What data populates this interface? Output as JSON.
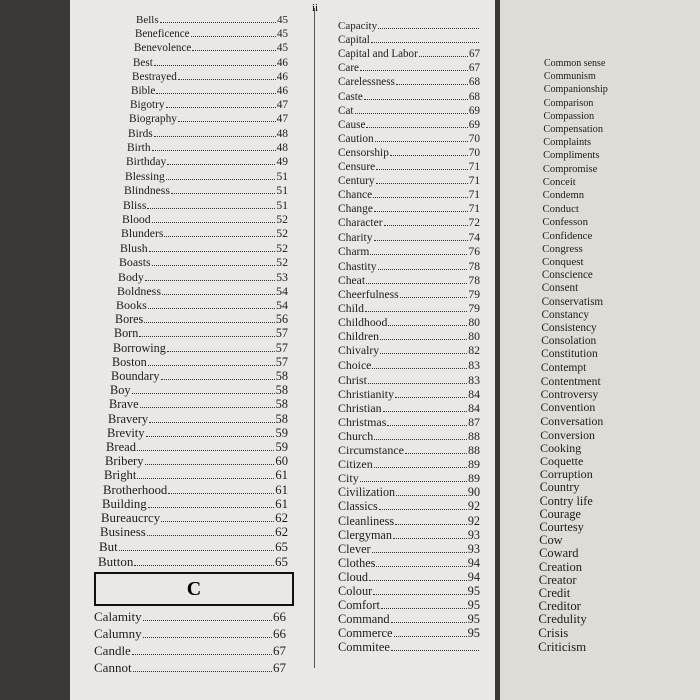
{
  "page_number": "ii",
  "left_column": {
    "entries": [
      {
        "term": "Bells",
        "page": 45
      },
      {
        "term": "Beneficence",
        "page": 45
      },
      {
        "term": "Benevolence",
        "page": 45
      },
      {
        "term": "Best",
        "page": 46
      },
      {
        "term": "Bestrayed",
        "page": 46
      },
      {
        "term": "Bible",
        "page": 46
      },
      {
        "term": "Bigotry",
        "page": 47
      },
      {
        "term": "Biography",
        "page": 47
      },
      {
        "term": "Birds",
        "page": 48
      },
      {
        "term": "Birth",
        "page": 48
      },
      {
        "term": "Birthday",
        "page": 49
      },
      {
        "term": "Blessing",
        "page": 51
      },
      {
        "term": "Blindness",
        "page": 51
      },
      {
        "term": "Bliss",
        "page": 51
      },
      {
        "term": "Blood",
        "page": 52
      },
      {
        "term": "Blunders",
        "page": 52
      },
      {
        "term": "Blush",
        "page": 52
      },
      {
        "term": "Boasts",
        "page": 52
      },
      {
        "term": "Body",
        "page": 53
      },
      {
        "term": "Boldness",
        "page": 54
      },
      {
        "term": "Books",
        "page": 54
      },
      {
        "term": "Bores",
        "page": 56
      },
      {
        "term": "Born",
        "page": 57
      },
      {
        "term": "Borrowing",
        "page": 57
      },
      {
        "term": "Boston",
        "page": 57
      },
      {
        "term": "Boundary",
        "page": 58
      },
      {
        "term": "Boy",
        "page": 58
      },
      {
        "term": "Brave",
        "page": 58
      },
      {
        "term": "Bravery",
        "page": 58
      },
      {
        "term": "Brevity",
        "page": 59
      },
      {
        "term": "Bread",
        "page": 59
      },
      {
        "term": "Bribery",
        "page": 60
      },
      {
        "term": "Bright",
        "page": 61
      },
      {
        "term": "Brotherhood",
        "page": 61
      },
      {
        "term": "Building",
        "page": 61
      },
      {
        "term": "Bureaucrcy",
        "page": 62
      },
      {
        "term": "Business",
        "page": 62
      },
      {
        "term": "But",
        "page": 65
      },
      {
        "term": "Button",
        "page": 65
      }
    ],
    "section_heading": "C",
    "after_heading": [
      {
        "term": "Calamity",
        "page": 66
      },
      {
        "term": "Calumny",
        "page": 66
      },
      {
        "term": "Candle",
        "page": 67
      },
      {
        "term": "Cannot",
        "page": 67
      }
    ]
  },
  "middle_column": {
    "entries": [
      {
        "term": "Capacity"
      },
      {
        "term": "Capital"
      },
      {
        "term": "Capital and Labor",
        "page": 67
      },
      {
        "term": "Care",
        "page": 67
      },
      {
        "term": "Carelessness",
        "page": 68
      },
      {
        "term": "Caste",
        "page": 68
      },
      {
        "term": "Cat",
        "page": 69
      },
      {
        "term": "Cause",
        "page": 69
      },
      {
        "term": "Caution",
        "page": 70
      },
      {
        "term": "Censorship",
        "page": 70
      },
      {
        "term": "Censure",
        "page": 71
      },
      {
        "term": "Century",
        "page": 71
      },
      {
        "term": "Chance",
        "page": 71
      },
      {
        "term": "Change",
        "page": 71
      },
      {
        "term": "Character",
        "page": 72
      },
      {
        "term": "Charity",
        "page": 74
      },
      {
        "term": "Charm",
        "page": 76
      },
      {
        "term": "Chastity",
        "page": 78
      },
      {
        "term": "Cheat",
        "page": 78
      },
      {
        "term": "Cheerfulness",
        "page": 79
      },
      {
        "term": "Child",
        "page": 79
      },
      {
        "term": "Childhood",
        "page": 80
      },
      {
        "term": "Children",
        "page": 80
      },
      {
        "term": "Chivalry",
        "page": 82
      },
      {
        "term": "Choice",
        "page": 83
      },
      {
        "term": "Christ",
        "page": 83
      },
      {
        "term": "Christianity",
        "page": 84
      },
      {
        "term": "Christian",
        "page": 84
      },
      {
        "term": "Christmas",
        "page": 87
      },
      {
        "term": "Church",
        "page": 88
      },
      {
        "term": "Circumstance",
        "page": 88
      },
      {
        "term": "Citizen",
        "page": 89
      },
      {
        "term": "City",
        "page": 89
      },
      {
        "term": "Civilization",
        "page": 90
      },
      {
        "term": "Classics",
        "page": 92
      },
      {
        "term": "Cleanliness",
        "page": 92
      },
      {
        "term": "Clergyman",
        "page": 93
      },
      {
        "term": "Clever",
        "page": 93
      },
      {
        "term": "Clothes",
        "page": 94
      },
      {
        "term": "Cloud",
        "page": 94
      },
      {
        "term": "Colour",
        "page": 95
      },
      {
        "term": "Comfort",
        "page": 95
      },
      {
        "term": "Command",
        "page": 95
      },
      {
        "term": "Commerce",
        "page": 95
      },
      {
        "term": "Commitee"
      }
    ]
  },
  "right_column": {
    "entries": [
      "Common sense",
      "Communism",
      "Companionship",
      "Comparison",
      "Compassion",
      "Compensation",
      "Complaints",
      "Compliments",
      "Compromise",
      "Conceit",
      "Condemn",
      "Conduct",
      "Confesson",
      "Confidence",
      "Congress",
      "Conquest",
      "Conscience",
      "Consent",
      "Conservatism",
      "Constancy",
      "Consistency",
      "Consolation",
      "Constitution",
      "Contempt",
      "Contentment",
      "Controversy",
      "Convention",
      "Conversation",
      "Conversion",
      "Cooking",
      "Coquette",
      "Corruption",
      "Country",
      "Contry life",
      "Courage",
      "Courtesy",
      "Cow",
      "Coward",
      "Creation",
      "Creator",
      "Credit",
      "Creditor",
      "Credulity",
      "Crisis",
      "Criticism"
    ]
  }
}
